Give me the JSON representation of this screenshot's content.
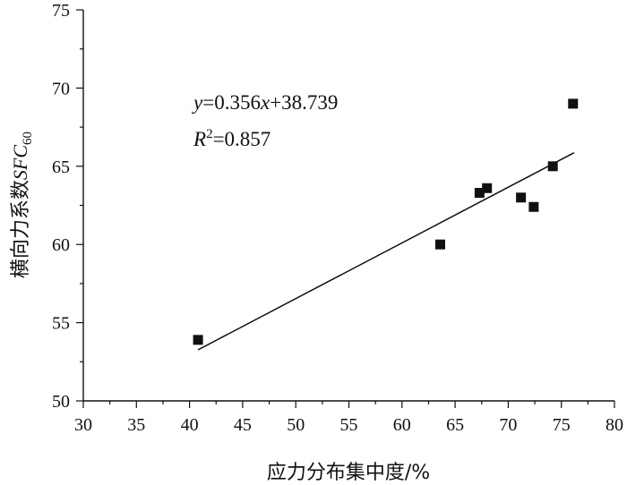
{
  "chart_data": {
    "type": "scatter",
    "xlabel": "应力分布集中度/%",
    "ylabel_main": "横向力系数",
    "ylabel_italic": "SFC",
    "ylabel_sub": "60",
    "xlim": [
      30,
      80
    ],
    "ylim": [
      50,
      75
    ],
    "xticks": [
      30,
      35,
      40,
      45,
      50,
      55,
      60,
      65,
      70,
      75,
      80
    ],
    "yticks": [
      50,
      55,
      60,
      65,
      70,
      75
    ],
    "grid": false,
    "points": [
      {
        "x": 40.8,
        "y": 53.9
      },
      {
        "x": 63.6,
        "y": 60.0
      },
      {
        "x": 67.3,
        "y": 63.3
      },
      {
        "x": 68.0,
        "y": 63.6
      },
      {
        "x": 71.2,
        "y": 63.0
      },
      {
        "x": 72.4,
        "y": 62.4
      },
      {
        "x": 74.2,
        "y": 65.0
      },
      {
        "x": 76.1,
        "y": 69.0
      }
    ],
    "fit": {
      "slope": 0.356,
      "intercept": 38.739,
      "x_range": [
        40.8,
        76.2
      ]
    },
    "equation": {
      "y": "y",
      "mid": "=0.356",
      "x": "x",
      "end": "+38.739"
    },
    "r2": {
      "r": "R",
      "sup": "2",
      "rest": "=0.857"
    }
  }
}
